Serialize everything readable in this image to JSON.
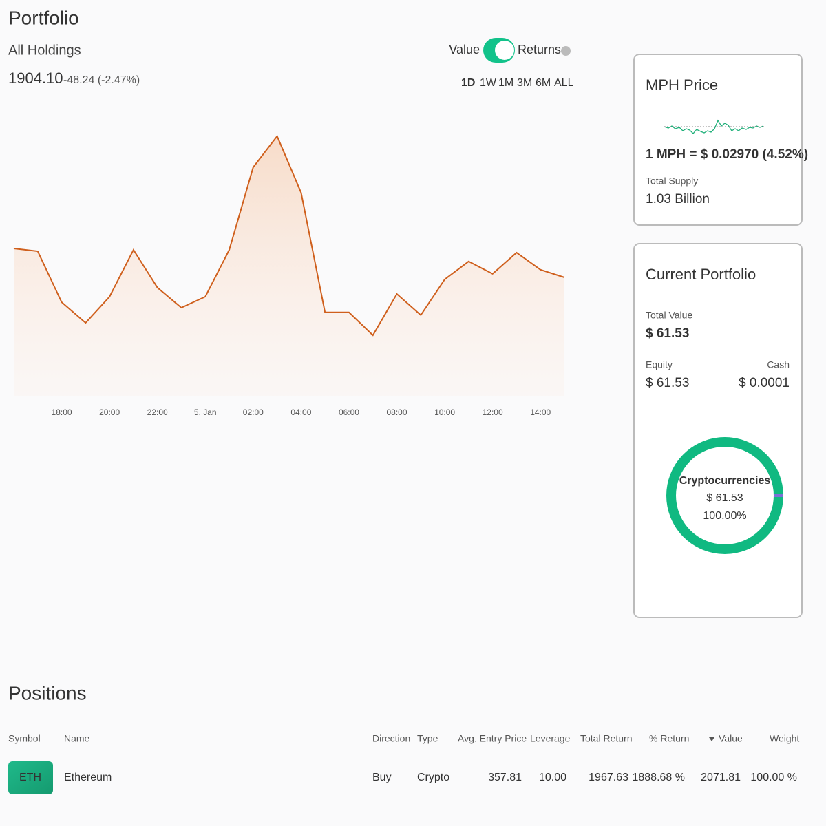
{
  "header": {
    "title": "Portfolio",
    "subtitle": "All Holdings",
    "value": "1904.10",
    "change": "-48.24 (-2.47%)"
  },
  "toggle": {
    "left": "Value",
    "right": "Returns"
  },
  "ranges": [
    "1D",
    "1W",
    "1M",
    "3M",
    "6M",
    "ALL"
  ],
  "mph": {
    "title": "MPH Price",
    "price": "1 MPH = $ 0.02970 (4.52%)",
    "supply_label": "Total Supply",
    "supply": "1.03 Billion"
  },
  "current": {
    "title": "Current Portfolio",
    "total_label": "Total Value",
    "total": "$ 61.53",
    "equity_label": "Equity",
    "equity": "$ 61.53",
    "cash_label": "Cash",
    "cash": "$ 0.0001"
  },
  "chart_data": [
    {
      "type": "area",
      "color": "#cf5f1c",
      "categories": [
        null,
        null,
        "18:00",
        null,
        "20:00",
        null,
        "22:00",
        null,
        "5. Jan",
        null,
        "02:00",
        null,
        "04:00",
        null,
        "06:00",
        null,
        "08:00",
        null,
        "10:00",
        null,
        "12:00",
        null,
        "14:00",
        null
      ],
      "values": [
        53.5,
        52.5,
        34,
        26.5,
        36,
        53,
        39.3,
        32,
        36,
        53,
        83,
        94.3,
        73.8,
        30.3,
        30.3,
        22,
        37,
        29.3,
        42.3,
        48.8,
        44.3,
        52,
        45.8,
        43
      ],
      "ylim": [
        0,
        100
      ]
    },
    {
      "type": "donut",
      "categories": [
        "Cryptocurrencies"
      ],
      "values": [
        100
      ],
      "value_labels": [
        "100.00%"
      ],
      "amounts": [
        "$ 61.53"
      ],
      "colors": [
        "#10b981"
      ]
    }
  ],
  "positions": {
    "title": "Positions",
    "columns": [
      "Symbol",
      "Name",
      "Direction",
      "Type",
      "Avg. Entry Price",
      "Leverage",
      "Total Return",
      "% Return",
      "Value",
      "Weight"
    ],
    "rows": [
      [
        "ETH",
        "Ethereum",
        "Buy",
        "Crypto",
        "357.81",
        "10.00",
        "1967.63",
        "1888.68 %",
        "2071.81",
        "100.00 %"
      ]
    ]
  }
}
